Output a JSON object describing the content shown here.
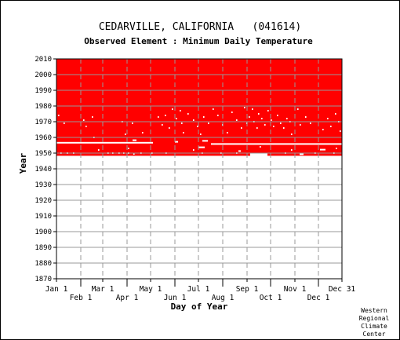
{
  "chart_data": {
    "type": "heatmap",
    "title": "CEDARVILLE, CALIFORNIA   (041614)",
    "subtitle": "Observed Element : Minimum Daily Temperature",
    "xlabel": "Day of Year",
    "ylabel": "Year",
    "xlim": [
      1,
      365
    ],
    "ylim": [
      1870,
      2010
    ],
    "x_ticks_upper": [
      {
        "label": "Jan 1",
        "day": 1
      },
      {
        "label": "Mar 1",
        "day": 60
      },
      {
        "label": "May 1",
        "day": 121
      },
      {
        "label": "Jul 1",
        "day": 182
      },
      {
        "label": "Sep 1",
        "day": 244
      },
      {
        "label": "Nov 1",
        "day": 305
      },
      {
        "label": "Dec 31",
        "day": 365
      }
    ],
    "x_ticks_lower": [
      {
        "label": "Feb 1",
        "day": 32
      },
      {
        "label": "Apr 1",
        "day": 91
      },
      {
        "label": "Jun 1",
        "day": 152
      },
      {
        "label": "Aug 1",
        "day": 213
      },
      {
        "label": "Oct 1",
        "day": 274
      },
      {
        "label": "Dec 1",
        "day": 335
      }
    ],
    "y_ticks": [
      1870,
      1880,
      1890,
      1900,
      1910,
      1920,
      1930,
      1940,
      1950,
      1960,
      1970,
      1980,
      1990,
      2000,
      2010
    ],
    "grid": true,
    "data_color": "#ff0000",
    "available_periods": [
      {
        "start_year": 1948.3,
        "end_year": 2010,
        "start_day": 1,
        "end_day": 365
      }
    ],
    "missing_segments": [
      {
        "year": 1956.6,
        "start_day": 1,
        "end_day": 124
      },
      {
        "year": 1955.8,
        "start_day": 198,
        "end_day": 365
      },
      {
        "year": 1948.6,
        "start_day": 248,
        "end_day": 270
      },
      {
        "year": 1948.9,
        "start_day": 248,
        "end_day": 270
      },
      {
        "year": 1949.4,
        "start_day": 248,
        "end_day": 270
      },
      {
        "year": 1953.7,
        "start_day": 182,
        "end_day": 190
      },
      {
        "year": 1957.8,
        "start_day": 187,
        "end_day": 194
      },
      {
        "year": 1958.2,
        "start_day": 98,
        "end_day": 103
      },
      {
        "year": 1952.2,
        "start_day": 337,
        "end_day": 344
      },
      {
        "year": 1949.3,
        "start_day": 311,
        "end_day": 316
      },
      {
        "year": 1951.3,
        "start_day": 233,
        "end_day": 236
      },
      {
        "year": 1957.2,
        "start_day": 152,
        "end_day": 156
      }
    ],
    "missing_days": [
      {
        "year": 1974,
        "day": 3
      },
      {
        "year": 1969,
        "day": 10
      },
      {
        "year": 1971,
        "day": 35
      },
      {
        "year": 1967,
        "day": 38
      },
      {
        "year": 1973,
        "day": 46
      },
      {
        "year": 1960,
        "day": 48
      },
      {
        "year": 1970,
        "day": 84
      },
      {
        "year": 1962,
        "day": 88
      },
      {
        "year": 1969,
        "day": 97
      },
      {
        "year": 1963,
        "day": 110
      },
      {
        "year": 1973,
        "day": 130
      },
      {
        "year": 1968,
        "day": 135
      },
      {
        "year": 1974,
        "day": 139
      },
      {
        "year": 1978,
        "day": 148
      },
      {
        "year": 1966,
        "day": 144
      },
      {
        "year": 1972,
        "day": 153
      },
      {
        "year": 1977,
        "day": 158
      },
      {
        "year": 1969,
        "day": 160
      },
      {
        "year": 1963,
        "day": 162
      },
      {
        "year": 1975,
        "day": 168
      },
      {
        "year": 1971,
        "day": 175
      },
      {
        "year": 1967,
        "day": 180
      },
      {
        "year": 1962,
        "day": 184
      },
      {
        "year": 1973,
        "day": 188
      },
      {
        "year": 1969,
        "day": 194
      },
      {
        "year": 1978,
        "day": 200
      },
      {
        "year": 1974,
        "day": 206
      },
      {
        "year": 1968,
        "day": 212
      },
      {
        "year": 1963,
        "day": 218
      },
      {
        "year": 1976,
        "day": 224
      },
      {
        "year": 1971,
        "day": 230
      },
      {
        "year": 1966,
        "day": 236
      },
      {
        "year": 1979,
        "day": 240
      },
      {
        "year": 1969,
        "day": 243
      },
      {
        "year": 1973,
        "day": 246
      },
      {
        "year": 1978,
        "day": 250
      },
      {
        "year": 1970,
        "day": 252
      },
      {
        "year": 1966,
        "day": 256
      },
      {
        "year": 1975,
        "day": 258
      },
      {
        "year": 1972,
        "day": 262
      },
      {
        "year": 1968,
        "day": 266
      },
      {
        "year": 1977,
        "day": 270
      },
      {
        "year": 1971,
        "day": 274
      },
      {
        "year": 1967,
        "day": 277
      },
      {
        "year": 1974,
        "day": 282
      },
      {
        "year": 1969,
        "day": 286
      },
      {
        "year": 1966,
        "day": 290
      },
      {
        "year": 1972,
        "day": 294
      },
      {
        "year": 1970,
        "day": 298
      },
      {
        "year": 1962,
        "day": 300
      },
      {
        "year": 1978,
        "day": 308
      },
      {
        "year": 1968,
        "day": 311
      },
      {
        "year": 1973,
        "day": 318
      },
      {
        "year": 1969,
        "day": 324
      },
      {
        "year": 1965,
        "day": 340
      },
      {
        "year": 1972,
        "day": 346
      },
      {
        "year": 1967,
        "day": 350
      },
      {
        "year": 1975,
        "day": 356
      },
      {
        "year": 1970,
        "day": 360
      },
      {
        "year": 1964,
        "day": 362
      },
      {
        "year": 1950,
        "day": 6
      },
      {
        "year": 1950,
        "day": 14
      },
      {
        "year": 1950,
        "day": 22
      },
      {
        "year": 1950,
        "day": 66
      },
      {
        "year": 1950,
        "day": 72
      },
      {
        "year": 1950,
        "day": 80
      },
      {
        "year": 1950,
        "day": 86
      },
      {
        "year": 1950,
        "day": 92
      },
      {
        "year": 1949.5,
        "day": 99
      },
      {
        "year": 1950,
        "day": 108
      },
      {
        "year": 1950,
        "day": 122
      },
      {
        "year": 1950,
        "day": 140
      },
      {
        "year": 1950,
        "day": 186
      },
      {
        "year": 1950,
        "day": 210
      },
      {
        "year": 1950,
        "day": 230
      },
      {
        "year": 1950,
        "day": 292
      },
      {
        "year": 1950,
        "day": 330
      },
      {
        "year": 1950,
        "day": 354
      },
      {
        "year": 1952,
        "day": 54
      },
      {
        "year": 1953,
        "day": 92
      },
      {
        "year": 1952,
        "day": 175
      },
      {
        "year": 1954,
        "day": 260
      },
      {
        "year": 1952,
        "day": 300
      },
      {
        "year": 1953,
        "day": 357
      }
    ]
  },
  "credit": [
    "Western",
    "Regional",
    "Climate",
    "Center"
  ]
}
